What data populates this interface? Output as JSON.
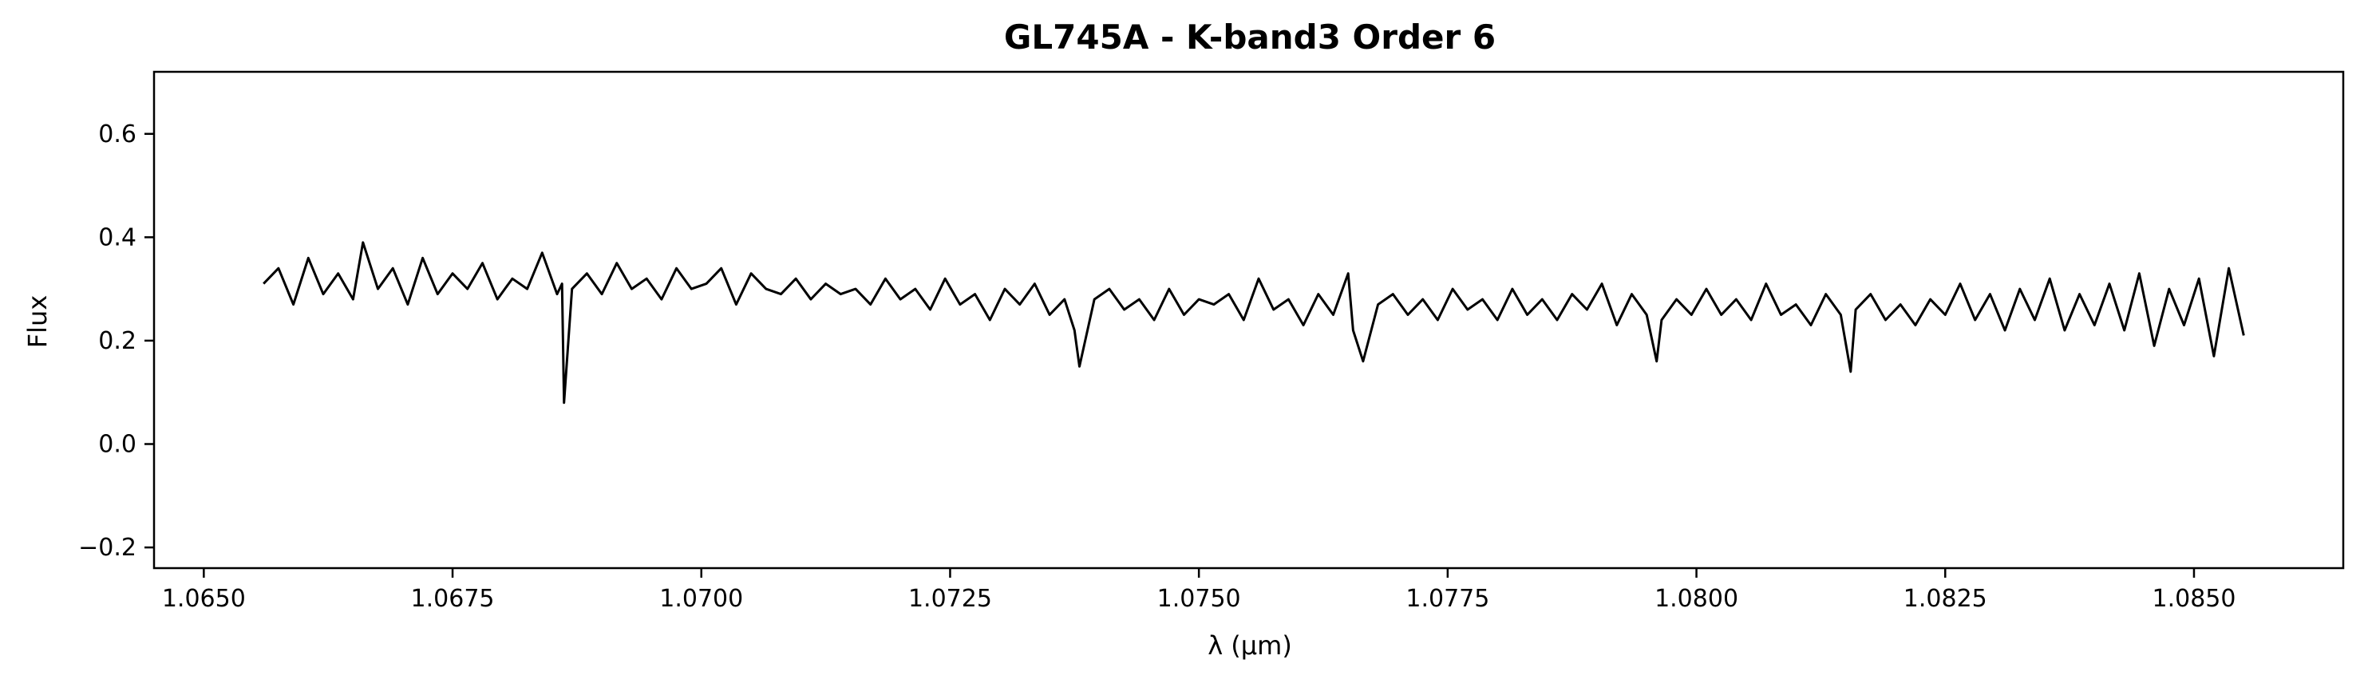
{
  "chart_data": {
    "type": "line",
    "title": "GL745A - K-band3 Order 6",
    "xlabel": "λ (μm)",
    "ylabel": "Flux",
    "xlim": [
      1.0645,
      1.0865
    ],
    "ylim": [
      -0.24,
      0.72
    ],
    "x_ticks": [
      1.065,
      1.0675,
      1.07,
      1.0725,
      1.075,
      1.0775,
      1.08,
      1.0825,
      1.085
    ],
    "x_tick_labels": [
      "1.0650",
      "1.0675",
      "1.0700",
      "1.0725",
      "1.0750",
      "1.0775",
      "1.0800",
      "1.0825",
      "1.0850"
    ],
    "y_ticks": [
      -0.2,
      0.0,
      0.2,
      0.4,
      0.6
    ],
    "y_tick_labels": [
      "−0.2",
      "0.0",
      "0.2",
      "0.4",
      "0.6"
    ],
    "grid": false,
    "legend": "none",
    "line_color": "#000000",
    "series": [
      {
        "x": [
          1.0656,
          1.06575,
          1.0659,
          1.06605,
          1.0662,
          1.06635,
          1.0665,
          1.0666,
          1.06675,
          1.0669,
          1.06705,
          1.0672,
          1.06735,
          1.0675,
          1.06765,
          1.0678,
          1.06795,
          1.0681,
          1.06825,
          1.0684,
          1.06855,
          1.0686,
          1.06862,
          1.0687,
          1.06885,
          1.069,
          1.06915,
          1.0693,
          1.06945,
          1.0696,
          1.06975,
          1.0699,
          1.07005,
          1.0702,
          1.07035,
          1.0705,
          1.07065,
          1.0708,
          1.07095,
          1.0711,
          1.07125,
          1.0714,
          1.07155,
          1.0717,
          1.07185,
          1.072,
          1.07215,
          1.0723,
          1.07245,
          1.0726,
          1.07275,
          1.0729,
          1.07305,
          1.0732,
          1.07335,
          1.0735,
          1.07365,
          1.07375,
          1.0738,
          1.07395,
          1.0741,
          1.07425,
          1.0744,
          1.07455,
          1.0747,
          1.07485,
          1.075,
          1.07515,
          1.0753,
          1.07545,
          1.0756,
          1.07575,
          1.0759,
          1.07605,
          1.0762,
          1.07635,
          1.0765,
          1.07655,
          1.07665,
          1.0768,
          1.07695,
          1.0771,
          1.07725,
          1.0774,
          1.07755,
          1.0777,
          1.07785,
          1.078,
          1.07815,
          1.0783,
          1.07845,
          1.0786,
          1.07875,
          1.0789,
          1.07905,
          1.0792,
          1.07935,
          1.0795,
          1.0796,
          1.07965,
          1.0798,
          1.07995,
          1.0801,
          1.08025,
          1.0804,
          1.08055,
          1.0807,
          1.08085,
          1.081,
          1.08115,
          1.0813,
          1.08145,
          1.08155,
          1.0816,
          1.08175,
          1.0819,
          1.08205,
          1.0822,
          1.08235,
          1.0825,
          1.08265,
          1.0828,
          1.08295,
          1.0831,
          1.08325,
          1.0834,
          1.08355,
          1.0837,
          1.08385,
          1.084,
          1.08415,
          1.0843,
          1.08445,
          1.0846,
          1.08475,
          1.0849,
          1.08505,
          1.0852,
          1.08535,
          1.0855
        ],
        "y": [
          0.31,
          0.34,
          0.27,
          0.36,
          0.29,
          0.33,
          0.28,
          0.39,
          0.3,
          0.34,
          0.27,
          0.36,
          0.29,
          0.33,
          0.3,
          0.35,
          0.28,
          0.32,
          0.3,
          0.37,
          0.29,
          0.31,
          0.08,
          0.3,
          0.33,
          0.29,
          0.35,
          0.3,
          0.32,
          0.28,
          0.34,
          0.3,
          0.31,
          0.34,
          0.27,
          0.33,
          0.3,
          0.29,
          0.32,
          0.28,
          0.31,
          0.29,
          0.3,
          0.27,
          0.32,
          0.28,
          0.3,
          0.26,
          0.32,
          0.27,
          0.29,
          0.24,
          0.3,
          0.27,
          0.31,
          0.25,
          0.28,
          0.22,
          0.15,
          0.28,
          0.3,
          0.26,
          0.28,
          0.24,
          0.3,
          0.25,
          0.28,
          0.27,
          0.29,
          0.24,
          0.32,
          0.26,
          0.28,
          0.23,
          0.29,
          0.25,
          0.33,
          0.22,
          0.16,
          0.27,
          0.29,
          0.25,
          0.28,
          0.24,
          0.3,
          0.26,
          0.28,
          0.24,
          0.3,
          0.25,
          0.28,
          0.24,
          0.29,
          0.26,
          0.31,
          0.23,
          0.29,
          0.25,
          0.16,
          0.24,
          0.28,
          0.25,
          0.3,
          0.25,
          0.28,
          0.24,
          0.31,
          0.25,
          0.27,
          0.23,
          0.29,
          0.25,
          0.14,
          0.26,
          0.29,
          0.24,
          0.27,
          0.23,
          0.28,
          0.25,
          0.31,
          0.24,
          0.29,
          0.22,
          0.3,
          0.24,
          0.32,
          0.22,
          0.29,
          0.23,
          0.31,
          0.22,
          0.33,
          0.19,
          0.3,
          0.23,
          0.32,
          0.17,
          0.34,
          0.21
        ]
      }
    ]
  }
}
